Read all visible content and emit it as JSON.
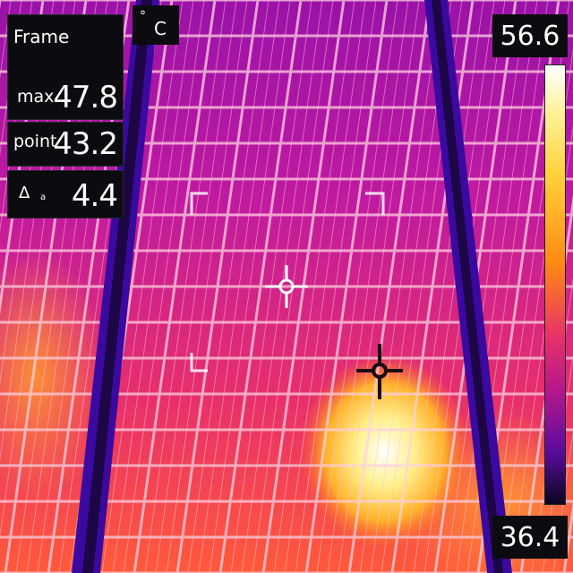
{
  "readouts": {
    "frame_title": "Frame",
    "max_label": "max",
    "max_value": "47.8",
    "point_label": "point",
    "point_value": "43.2",
    "delta_label": "Δ",
    "delta_sub": "a",
    "delta_value": "4.4"
  },
  "unit": {
    "degree": "°",
    "letter": "C"
  },
  "scale": {
    "max": "56.6",
    "min": "36.4"
  },
  "colors": {
    "hot": "#ffffff",
    "warm": "#ff8a12",
    "mid": "#e8306a",
    "cool": "#5a0c9c",
    "frame": "#3a0aa0"
  },
  "icons": [
    "crosshair-icon",
    "hotspot-crosshair-icon",
    "roi-corner-icon"
  ]
}
